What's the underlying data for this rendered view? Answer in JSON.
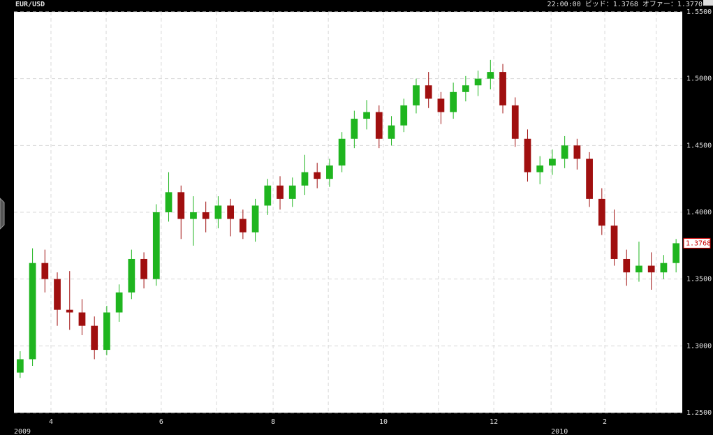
{
  "header": {
    "symbol": "EUR/USD",
    "quote": "22:00:00  ビッド：1.3768  オファー：1.3770"
  },
  "chart_data": {
    "type": "candlestick",
    "x": [
      0.5,
      1.5,
      2.5,
      3.5,
      4.5,
      5.5,
      6.5,
      7.5,
      8.5,
      9.5,
      10.5,
      11.5,
      12.5,
      13.5,
      14.5,
      15.5,
      16.5,
      17.5,
      18.5,
      19.5,
      20.5,
      21.5,
      22.5,
      23.5,
      24.5,
      25.5,
      26.5,
      27.5,
      28.5,
      29.5,
      30.5,
      31.5,
      32.5,
      33.5,
      34.5,
      35.5,
      36.5,
      37.5,
      38.5,
      39.5,
      40.5,
      41.5,
      42.5,
      43.5,
      44.5,
      45.5,
      46.5,
      47.5,
      48.5,
      49.5,
      50.5,
      51.5,
      52.5,
      53.5
    ],
    "open": [
      1.28,
      1.29,
      1.362,
      1.35,
      1.327,
      1.325,
      1.315,
      1.297,
      1.325,
      1.34,
      1.365,
      1.35,
      1.4,
      1.415,
      1.395,
      1.4,
      1.395,
      1.405,
      1.395,
      1.385,
      1.405,
      1.42,
      1.41,
      1.42,
      1.43,
      1.425,
      1.435,
      1.455,
      1.47,
      1.475,
      1.455,
      1.465,
      1.48,
      1.495,
      1.485,
      1.475,
      1.49,
      1.495,
      1.5,
      1.505,
      1.48,
      1.455,
      1.43,
      1.435,
      1.44,
      1.45,
      1.44,
      1.41,
      1.39,
      1.365,
      1.355,
      1.36,
      1.355,
      1.362
    ],
    "high": [
      1.296,
      1.373,
      1.372,
      1.355,
      1.356,
      1.335,
      1.322,
      1.33,
      1.346,
      1.372,
      1.37,
      1.406,
      1.43,
      1.42,
      1.412,
      1.408,
      1.412,
      1.41,
      1.402,
      1.41,
      1.425,
      1.427,
      1.426,
      1.443,
      1.437,
      1.44,
      1.46,
      1.476,
      1.484,
      1.48,
      1.472,
      1.485,
      1.5,
      1.505,
      1.49,
      1.497,
      1.502,
      1.506,
      1.514,
      1.511,
      1.486,
      1.462,
      1.442,
      1.447,
      1.457,
      1.455,
      1.445,
      1.418,
      1.402,
      1.372,
      1.378,
      1.37,
      1.368,
      1.38
    ],
    "low": [
      1.276,
      1.285,
      1.34,
      1.315,
      1.312,
      1.308,
      1.29,
      1.293,
      1.318,
      1.335,
      1.343,
      1.345,
      1.393,
      1.38,
      1.375,
      1.385,
      1.388,
      1.382,
      1.38,
      1.378,
      1.398,
      1.402,
      1.404,
      1.413,
      1.418,
      1.419,
      1.43,
      1.448,
      1.462,
      1.448,
      1.45,
      1.46,
      1.474,
      1.478,
      1.466,
      1.47,
      1.483,
      1.487,
      1.492,
      1.474,
      1.449,
      1.423,
      1.421,
      1.428,
      1.433,
      1.432,
      1.404,
      1.383,
      1.36,
      1.345,
      1.348,
      1.342,
      1.35,
      1.355
    ],
    "close": [
      1.29,
      1.362,
      1.35,
      1.327,
      1.325,
      1.315,
      1.297,
      1.325,
      1.34,
      1.365,
      1.35,
      1.4,
      1.415,
      1.395,
      1.4,
      1.395,
      1.405,
      1.395,
      1.385,
      1.405,
      1.42,
      1.41,
      1.42,
      1.43,
      1.425,
      1.435,
      1.455,
      1.47,
      1.475,
      1.455,
      1.465,
      1.48,
      1.495,
      1.485,
      1.475,
      1.49,
      1.495,
      1.5,
      1.505,
      1.48,
      1.455,
      1.43,
      1.435,
      1.44,
      1.45,
      1.44,
      1.41,
      1.39,
      1.365,
      1.355,
      1.36,
      1.355,
      1.362,
      1.3768
    ],
    "up_color": "#1fb51f",
    "down_color": "#a00f0f",
    "xlim": [
      0,
      54
    ],
    "xticks": [
      {
        "value": 2.99,
        "label": "4"
      },
      {
        "value": 11.9,
        "label": "6"
      },
      {
        "value": 20.94,
        "label": "8"
      },
      {
        "value": 29.85,
        "label": "10"
      },
      {
        "value": 38.77,
        "label": "12"
      },
      {
        "value": 47.74,
        "label": "2"
      }
    ],
    "xgrid": [
      2.99,
      7.45,
      11.9,
      16.37,
      20.94,
      25.4,
      29.85,
      34.3,
      38.77,
      43.4,
      47.74,
      51.9
    ],
    "year_labels": [
      {
        "value": 0,
        "label": "2009"
      },
      {
        "value": 43.4,
        "label": "2010"
      }
    ],
    "ylim": [
      1.25,
      1.55
    ],
    "yticks": [
      {
        "value": 1.25,
        "label": "1.2500"
      },
      {
        "value": 1.3,
        "label": "1.3000"
      },
      {
        "value": 1.35,
        "label": "1.3500"
      },
      {
        "value": 1.4,
        "label": "1.4000"
      },
      {
        "value": 1.45,
        "label": "1.4500"
      },
      {
        "value": 1.5,
        "label": "1.5000"
      },
      {
        "value": 1.55,
        "label": "1.5500"
      }
    ],
    "last_price": 1.3768,
    "grid": true
  }
}
